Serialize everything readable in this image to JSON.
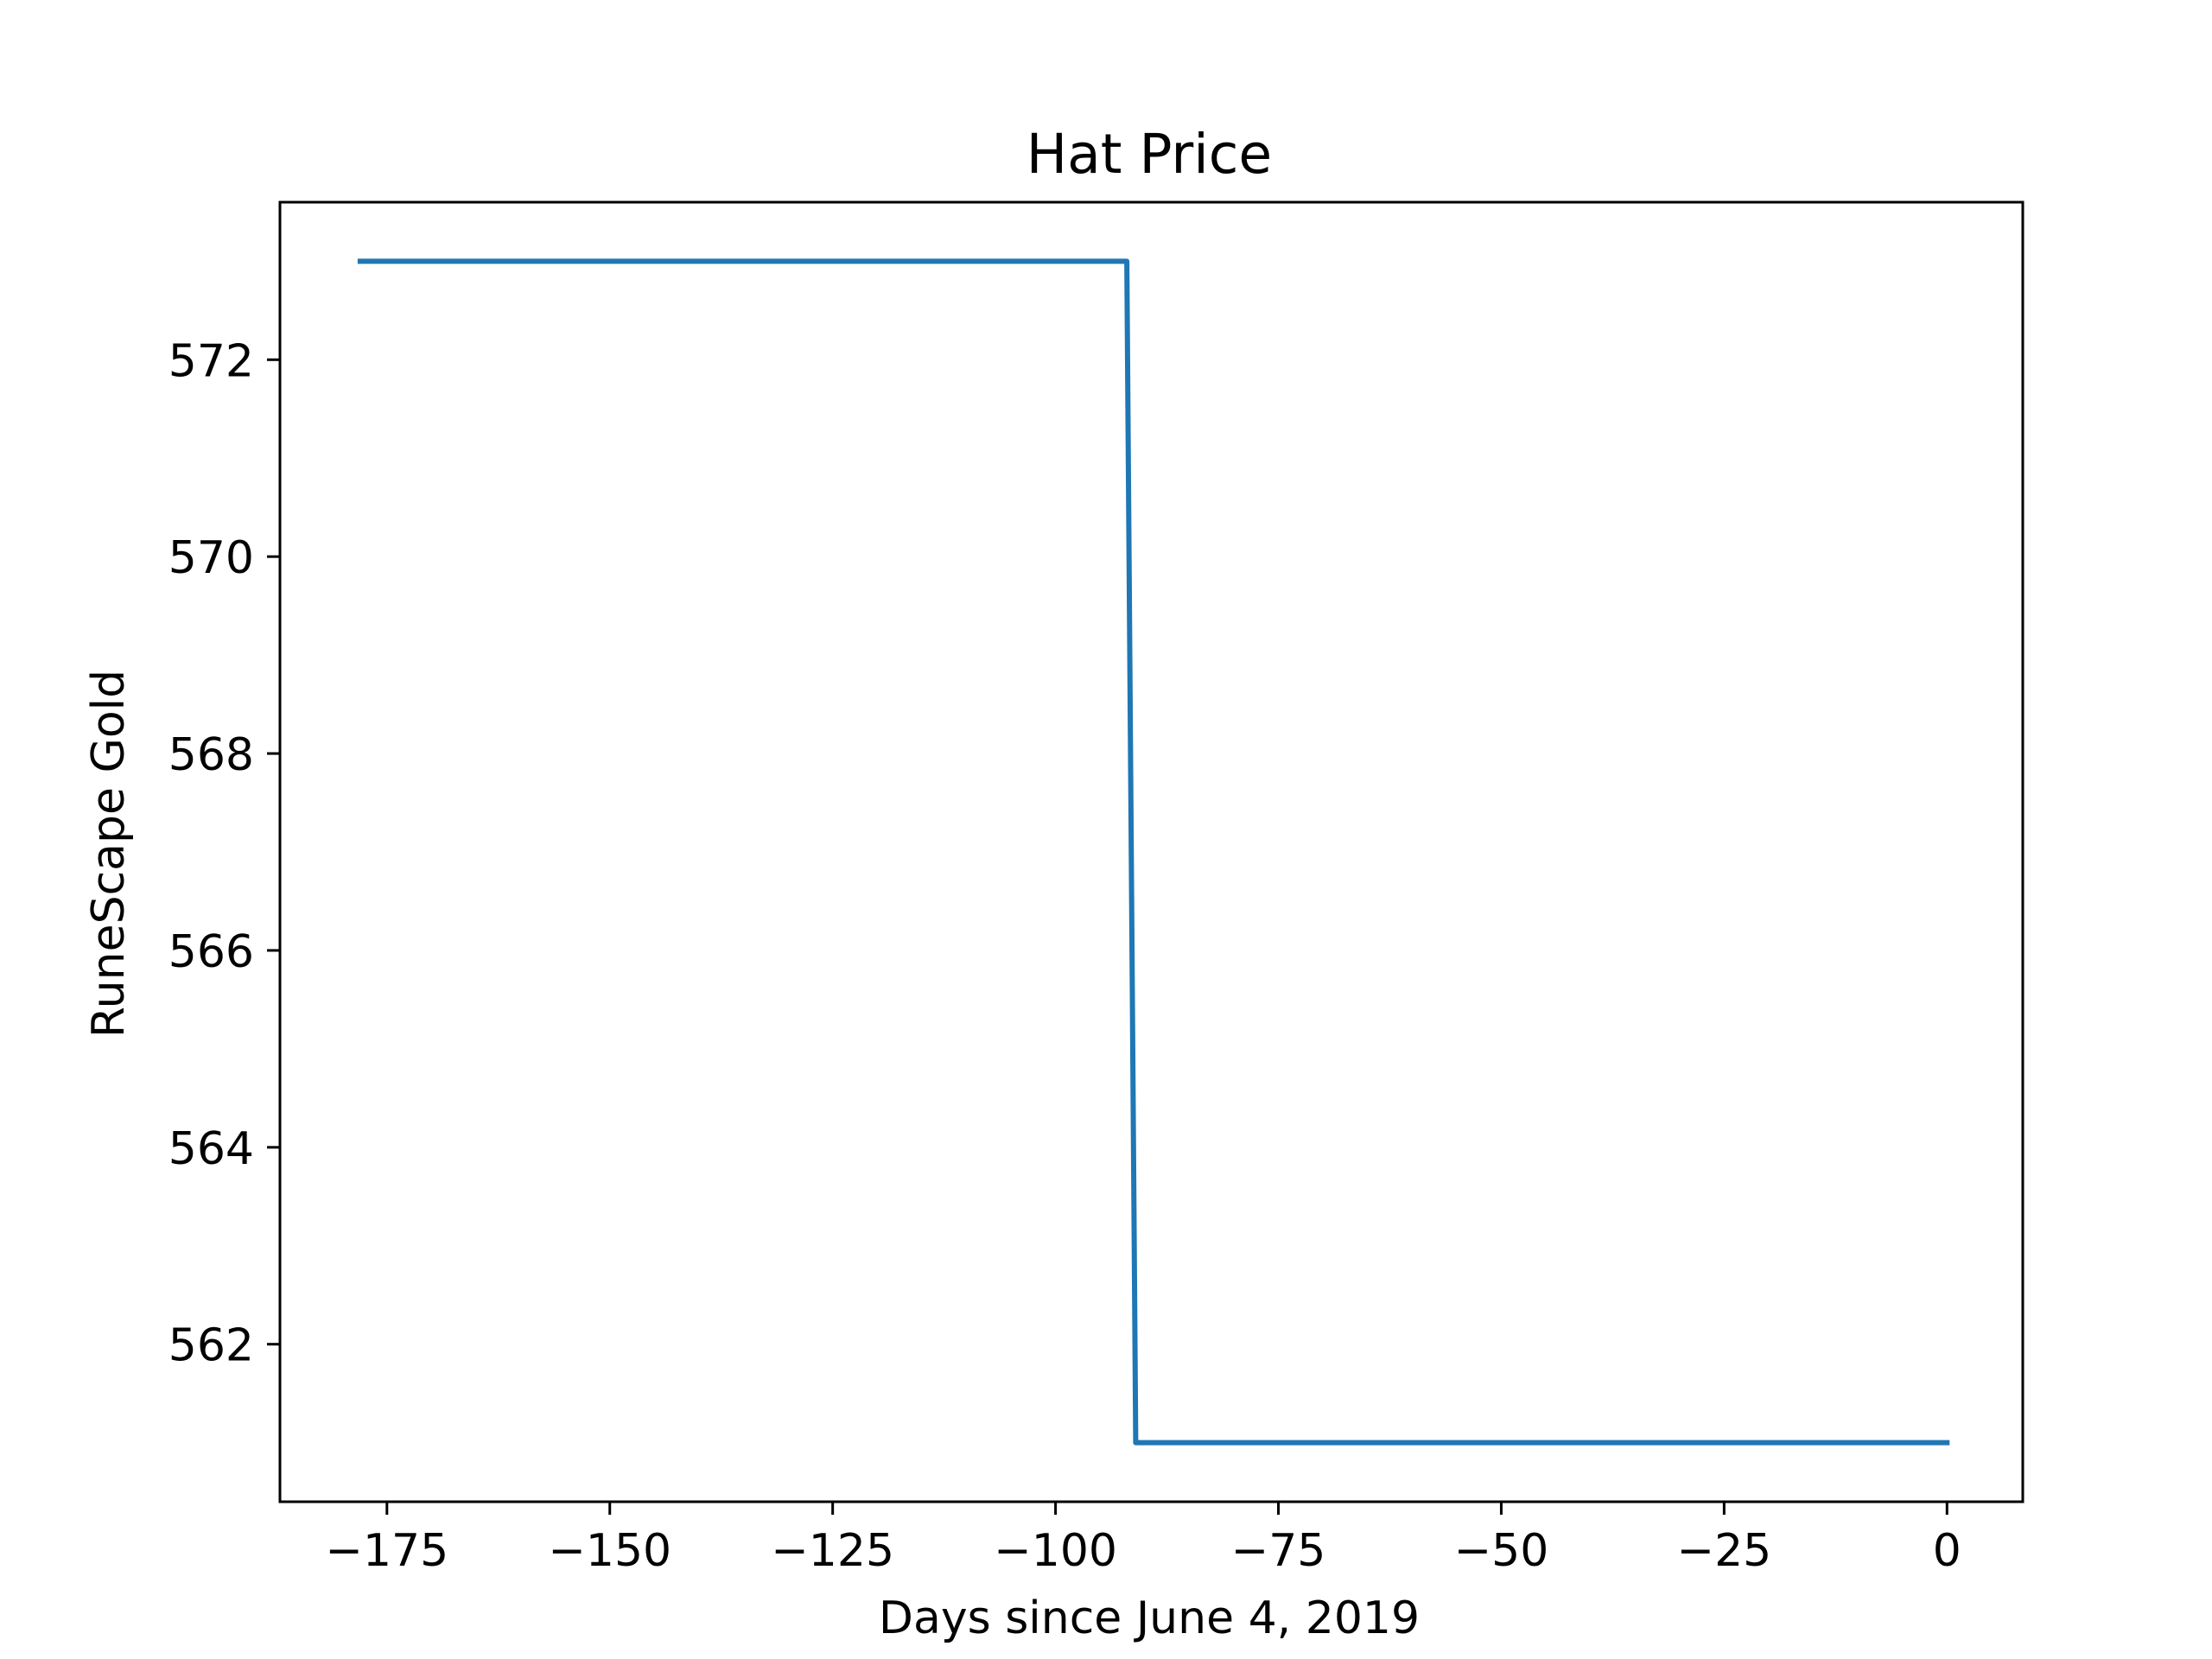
{
  "chart_data": {
    "type": "line",
    "title": "Hat Price",
    "xlabel": "Days since June 4, 2019",
    "ylabel": "RuneScape Gold",
    "xlim": [
      -187,
      8.5
    ],
    "ylim": [
      560.4,
      573.6
    ],
    "xticks": [
      -175,
      -150,
      -125,
      -100,
      -75,
      -50,
      -25,
      0
    ],
    "xtick_labels": [
      "−175",
      "−150",
      "−125",
      "−100",
      "−75",
      "−50",
      "−25",
      "0"
    ],
    "yticks": [
      562,
      564,
      566,
      568,
      570,
      572
    ],
    "ytick_labels": [
      "562",
      "564",
      "566",
      "568",
      "570",
      "572"
    ],
    "grid": false,
    "legend": "none",
    "series": [
      {
        "color": "#1f77b4",
        "x": [
          -178,
          -92,
          -91,
          0
        ],
        "y": [
          573,
          573,
          561,
          561
        ]
      }
    ]
  }
}
